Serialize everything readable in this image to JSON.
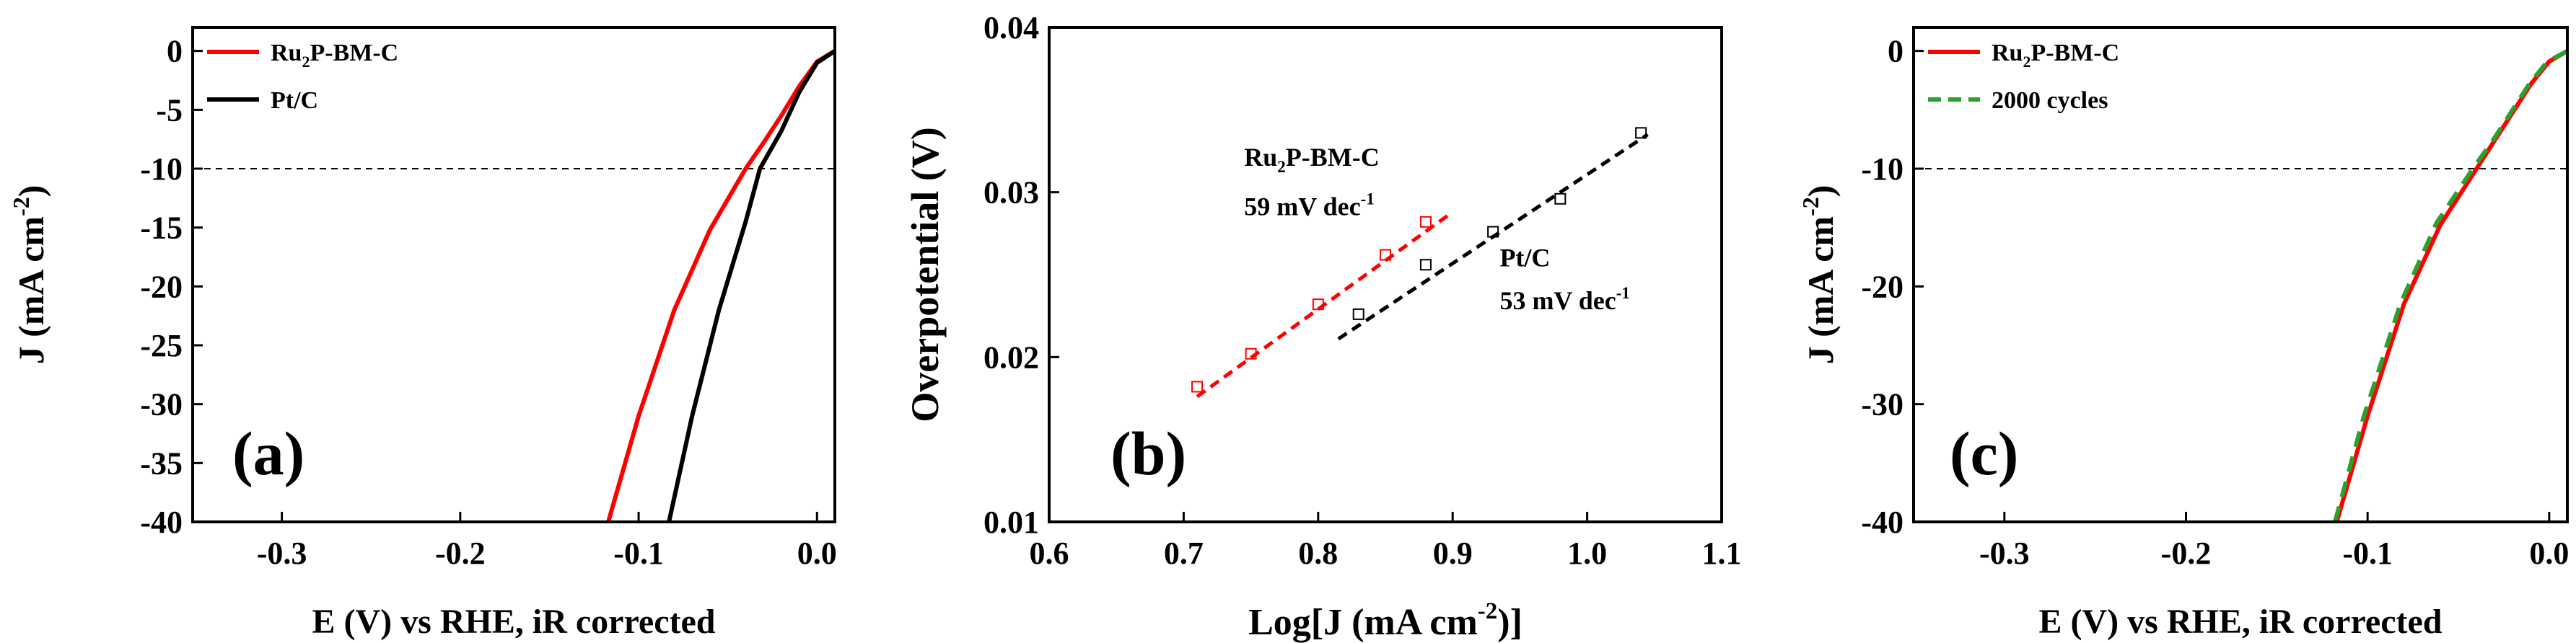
{
  "chart_data": [
    {
      "type": "line",
      "panel_label": "(a)",
      "xlabel": "E (V) vs RHE, iR corrected",
      "ylabel_main": "J (mA cm",
      "ylabel_sup": "-2",
      "ylabel_end": ")",
      "xlim": [
        -0.35,
        0.01
      ],
      "ylim": [
        -40,
        2
      ],
      "xticks": [
        -0.3,
        -0.2,
        -0.1,
        0.0
      ],
      "xtick_labels": [
        "-0.3",
        "-0.2",
        "-0.1",
        "0.0"
      ],
      "yticks": [
        0,
        -5,
        -10,
        -15,
        -20,
        -25,
        -30,
        -35,
        -40
      ],
      "ytick_labels": [
        "0",
        "-5",
        "-10",
        "-15",
        "-20",
        "-25",
        "-30",
        "-35",
        "-40"
      ],
      "reference_line_y": -10,
      "legend": [
        {
          "main": "Ru",
          "sub": "2",
          "rest": "P-BM-C",
          "color": "#ff0000",
          "dash": "solid"
        },
        {
          "main": "Pt/C",
          "sub": "",
          "rest": "",
          "color": "#000000",
          "dash": "solid"
        }
      ],
      "series": [
        {
          "name": "Ru2P-BM-C",
          "color": "#ff0000",
          "dash": "solid",
          "points": [
            [
              -0.117,
              -40
            ],
            [
              -0.1,
              -31
            ],
            [
              -0.08,
              -22
            ],
            [
              -0.06,
              -15.2
            ],
            [
              -0.04,
              -10
            ],
            [
              -0.03,
              -7.8
            ],
            [
              -0.02,
              -5.5
            ],
            [
              -0.01,
              -3
            ],
            [
              0.0,
              -0.9
            ],
            [
              0.01,
              0
            ]
          ]
        },
        {
          "name": "Pt/C",
          "color": "#000000",
          "dash": "solid",
          "points": [
            [
              -0.083,
              -40
            ],
            [
              -0.07,
              -31
            ],
            [
              -0.055,
              -22
            ],
            [
              -0.04,
              -14.5
            ],
            [
              -0.032,
              -10
            ],
            [
              -0.02,
              -6.8
            ],
            [
              -0.01,
              -3.5
            ],
            [
              0.0,
              -1
            ],
            [
              0.01,
              0
            ]
          ]
        }
      ]
    },
    {
      "type": "scatter",
      "panel_label": "(b)",
      "xlabel_main": "Log[J (mA cm",
      "xlabel_sup": "-2",
      "xlabel_end": ")]",
      "ylabel": "Overpotential (V)",
      "xlim": [
        0.6,
        1.1
      ],
      "ylim": [
        0.01,
        0.04
      ],
      "xticks": [
        0.6,
        0.7,
        0.8,
        0.9,
        1.0,
        1.1
      ],
      "xtick_labels": [
        "0.6",
        "0.7",
        "0.8",
        "0.9",
        "1.0",
        "1.1"
      ],
      "yticks": [
        0.01,
        0.02,
        0.03,
        0.04
      ],
      "ytick_labels": [
        "0.01",
        "0.02",
        "0.03",
        "0.04"
      ],
      "series": [
        {
          "name": "Ru2P-BM-C",
          "color": "#ff0000",
          "points": [
            [
              0.71,
              0.0182
            ],
            [
              0.75,
              0.0202
            ],
            [
              0.8,
              0.0232
            ],
            [
              0.85,
              0.0262
            ],
            [
              0.88,
              0.0282
            ]
          ],
          "fit": [
            [
              0.71,
              0.0176
            ],
            [
              0.9,
              0.0288
            ]
          ]
        },
        {
          "name": "Pt/C",
          "color": "#000000",
          "points": [
            [
              0.83,
              0.0226
            ],
            [
              0.88,
              0.0256
            ],
            [
              0.93,
              0.0276
            ],
            [
              0.98,
              0.0296
            ],
            [
              1.04,
              0.0336
            ]
          ],
          "fit": [
            [
              0.815,
              0.0211
            ],
            [
              1.045,
              0.0335
            ]
          ]
        }
      ],
      "annotations": [
        {
          "main": "Ru",
          "sub": "2",
          "rest": "P-BM-C",
          "color": "#ff0000",
          "x": 0.745,
          "y": 0.0316
        },
        {
          "main": "59 mV dec",
          "sup": "-1",
          "color": "#ff0000",
          "x": 0.745,
          "y": 0.0286
        },
        {
          "main": "Pt/C",
          "color": "#000000",
          "x": 0.935,
          "y": 0.0255
        },
        {
          "main": "53 mV dec",
          "sup": "-1",
          "color": "#000000",
          "x": 0.935,
          "y": 0.0229
        }
      ]
    },
    {
      "type": "line",
      "panel_label": "(c)",
      "xlabel": "E (V) vs RHE, iR corrected",
      "ylabel_main": "J (mA cm",
      "ylabel_sup": "-2",
      "ylabel_end": ")",
      "xlim": [
        -0.35,
        0.01
      ],
      "ylim": [
        -40,
        2
      ],
      "xticks": [
        -0.3,
        -0.2,
        -0.1,
        0.0
      ],
      "xtick_labels": [
        "-0.3",
        "-0.2",
        "-0.1",
        "0.0"
      ],
      "yticks": [
        0,
        -10,
        -20,
        -30,
        -40
      ],
      "ytick_labels": [
        "0",
        "-10",
        "-20",
        "-30",
        "-40"
      ],
      "reference_line_y": -10,
      "legend": [
        {
          "main": "Ru",
          "sub": "2",
          "rest": "P-BM-C",
          "color": "#ff0000",
          "dash": "solid"
        },
        {
          "main": "2000 cycles",
          "sub": "",
          "rest": "",
          "color": "#2ca02c",
          "dash": "dashed"
        }
      ],
      "series": [
        {
          "name": "Ru2P-BM-C",
          "color": "#ff0000",
          "dash": "solid",
          "points": [
            [
              -0.117,
              -40
            ],
            [
              -0.1,
              -31
            ],
            [
              -0.08,
              -21.5
            ],
            [
              -0.06,
              -14.8
            ],
            [
              -0.04,
              -10
            ],
            [
              -0.03,
              -7.6
            ],
            [
              -0.02,
              -5.2
            ],
            [
              -0.01,
              -2.8
            ],
            [
              0.0,
              -0.9
            ],
            [
              0.01,
              0
            ]
          ]
        },
        {
          "name": "2000 cycles",
          "color": "#2ca02c",
          "dash": "dashed",
          "points": [
            [
              -0.118,
              -40
            ],
            [
              -0.102,
              -31
            ],
            [
              -0.082,
              -21.5
            ],
            [
              -0.062,
              -14.6
            ],
            [
              -0.042,
              -10
            ],
            [
              -0.031,
              -7.6
            ],
            [
              -0.021,
              -5.2
            ],
            [
              -0.011,
              -2.8
            ],
            [
              -0.001,
              -0.9
            ],
            [
              0.01,
              0
            ]
          ]
        }
      ]
    }
  ]
}
